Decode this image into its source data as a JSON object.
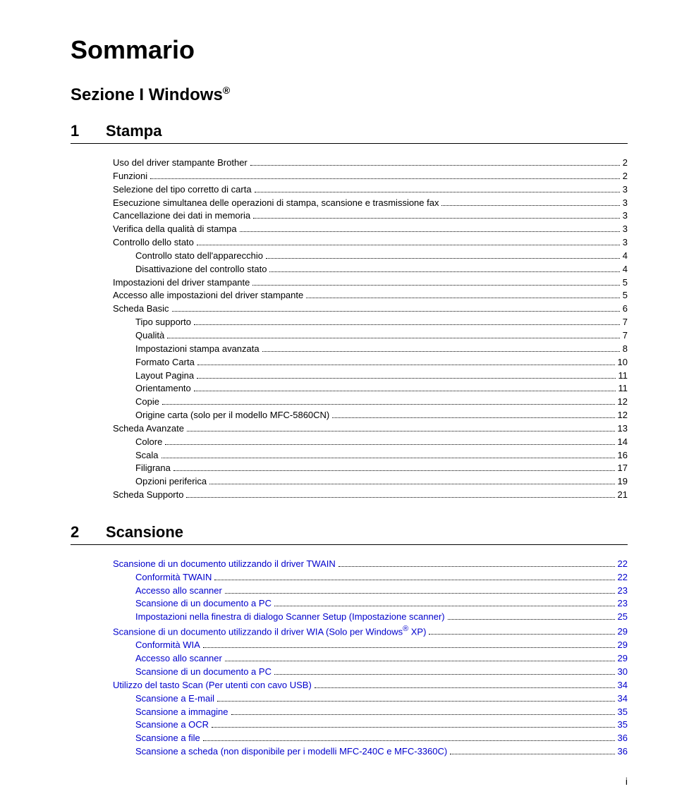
{
  "title": "Sommario",
  "section_heading": "Sezione I  Windows",
  "chapters": [
    {
      "num": "1",
      "title": "Stampa",
      "link_color": "#000000",
      "entries": [
        {
          "label": "Uso del driver stampante Brother",
          "page": "2",
          "indent": 0,
          "link": false
        },
        {
          "label": "Funzioni",
          "page": "2",
          "indent": 0,
          "link": false
        },
        {
          "label": "Selezione del tipo corretto di carta",
          "page": "3",
          "indent": 0,
          "link": false
        },
        {
          "label": "Esecuzione simultanea delle operazioni di stampa, scansione e trasmissione fax",
          "page": "3",
          "indent": 0,
          "link": false
        },
        {
          "label": "Cancellazione dei dati in memoria",
          "page": "3",
          "indent": 0,
          "link": false
        },
        {
          "label": "Verifica della qualità di stampa",
          "page": "3",
          "indent": 0,
          "link": false
        },
        {
          "label": "Controllo dello stato",
          "page": "3",
          "indent": 0,
          "link": false
        },
        {
          "label": "Controllo stato dell'apparecchio",
          "page": "4",
          "indent": 1,
          "link": false
        },
        {
          "label": "Disattivazione del controllo stato",
          "page": "4",
          "indent": 1,
          "link": false
        },
        {
          "label": "Impostazioni del driver stampante",
          "page": "5",
          "indent": 0,
          "link": false
        },
        {
          "label": "Accesso alle impostazioni del driver stampante",
          "page": "5",
          "indent": 0,
          "link": false
        },
        {
          "label": "Scheda Basic",
          "page": "6",
          "indent": 0,
          "link": false
        },
        {
          "label": "Tipo supporto",
          "page": "7",
          "indent": 1,
          "link": false
        },
        {
          "label": "Qualità",
          "page": "7",
          "indent": 1,
          "link": false
        },
        {
          "label": "Impostazioni stampa avanzata",
          "page": "8",
          "indent": 1,
          "link": false
        },
        {
          "label": "Formato Carta",
          "page": "10",
          "indent": 1,
          "link": false
        },
        {
          "label": "Layout Pagina",
          "page": "11",
          "indent": 1,
          "link": false
        },
        {
          "label": "Orientamento",
          "page": "11",
          "indent": 1,
          "link": false
        },
        {
          "label": "Copie",
          "page": "12",
          "indent": 1,
          "link": false
        },
        {
          "label": "Origine carta (solo per il modello MFC-5860CN)",
          "page": "12",
          "indent": 1,
          "link": false
        },
        {
          "label": "Scheda Avanzate",
          "page": "13",
          "indent": 0,
          "link": false
        },
        {
          "label": "Colore",
          "page": "14",
          "indent": 1,
          "link": false
        },
        {
          "label": "Scala",
          "page": "16",
          "indent": 1,
          "link": false
        },
        {
          "label": "Filigrana",
          "page": "17",
          "indent": 1,
          "link": false
        },
        {
          "label": "Opzioni periferica",
          "page": "19",
          "indent": 1,
          "link": false
        },
        {
          "label": "Scheda Supporto",
          "page": "21",
          "indent": 0,
          "link": false
        }
      ]
    },
    {
      "num": "2",
      "title": "Scansione",
      "link_color": "#0000cc",
      "entries": [
        {
          "label": "Scansione di un documento utilizzando il driver TWAIN",
          "page": "22",
          "indent": 0,
          "link": true
        },
        {
          "label": "Conformità TWAIN",
          "page": "22",
          "indent": 1,
          "link": true
        },
        {
          "label": "Accesso allo scanner",
          "page": "23",
          "indent": 1,
          "link": true
        },
        {
          "label": "Scansione di un documento a PC",
          "page": "23",
          "indent": 1,
          "link": true
        },
        {
          "label": "Impostazioni nella finestra di dialogo Scanner Setup (Impostazione scanner)",
          "page": "25",
          "indent": 1,
          "link": true
        },
        {
          "label": "Scansione di un documento utilizzando il driver WIA (Solo per Windows® XP)",
          "page": "29",
          "indent": 0,
          "link": true
        },
        {
          "label": "Conformità WIA",
          "page": "29",
          "indent": 1,
          "link": true
        },
        {
          "label": "Accesso allo scanner",
          "page": "29",
          "indent": 1,
          "link": true
        },
        {
          "label": "Scansione di un documento a PC",
          "page": "30",
          "indent": 1,
          "link": true
        },
        {
          "label": "Utilizzo del tasto Scan (Per utenti con cavo USB)",
          "page": "34",
          "indent": 0,
          "link": true
        },
        {
          "label": "Scansione a E-mail",
          "page": "34",
          "indent": 1,
          "link": true
        },
        {
          "label": "Scansione a immagine",
          "page": "35",
          "indent": 1,
          "link": true
        },
        {
          "label": "Scansione a OCR",
          "page": "35",
          "indent": 1,
          "link": true
        },
        {
          "label": "Scansione a file",
          "page": "36",
          "indent": 1,
          "link": true
        },
        {
          "label": "Scansione a scheda (non disponibile per i modelli MFC-240C e MFC-3360C)",
          "page": "36",
          "indent": 1,
          "link": true
        }
      ]
    }
  ],
  "page_number": "i",
  "colors": {
    "text": "#000000",
    "link": "#0000cc",
    "background": "#ffffff"
  }
}
